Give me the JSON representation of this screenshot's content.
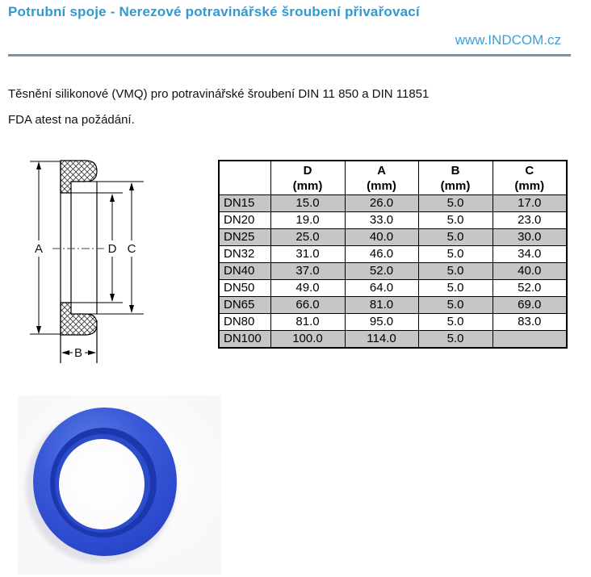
{
  "page": {
    "title": "Potrubní spoje - Nerezové potravinářské šroubení přivařovací",
    "website": "www.INDCOM.cz",
    "description_line1": "Těsnění silikonové (VMQ) pro potravinářské šroubení DIN 11 850 a DIN 11851",
    "description_line2": "FDA atest na požádání."
  },
  "diagram": {
    "labels": {
      "a": "A",
      "b": "B",
      "c": "C",
      "d": "D"
    }
  },
  "table": {
    "corner_header": "",
    "columns": [
      {
        "letter": "D",
        "unit": "(mm)"
      },
      {
        "letter": "A",
        "unit": "(mm)"
      },
      {
        "letter": "B",
        "unit": "(mm)"
      },
      {
        "letter": "C",
        "unit": "(mm)"
      }
    ],
    "rows": [
      {
        "dn": "DN15",
        "d": "15.0",
        "a": "26.0",
        "b": "5.0",
        "c": "17.0"
      },
      {
        "dn": "DN20",
        "d": "19.0",
        "a": "33.0",
        "b": "5.0",
        "c": "23.0"
      },
      {
        "dn": "DN25",
        "d": "25.0",
        "a": "40.0",
        "b": "5.0",
        "c": "30.0"
      },
      {
        "dn": "DN32",
        "d": "31.0",
        "a": "46.0",
        "b": "5.0",
        "c": "34.0"
      },
      {
        "dn": "DN40",
        "d": "37.0",
        "a": "52.0",
        "b": "5.0",
        "c": "40.0"
      },
      {
        "dn": "DN50",
        "d": "49.0",
        "a": "64.0",
        "b": "5.0",
        "c": "52.0"
      },
      {
        "dn": "DN65",
        "d": "66.0",
        "a": "81.0",
        "b": "5.0",
        "c": "69.0"
      },
      {
        "dn": "DN80",
        "d": "81.0",
        "a": "95.0",
        "b": "5.0",
        "c": "83.0"
      },
      {
        "dn": "DN100",
        "d": "100.0",
        "a": "114.0",
        "b": "5.0",
        "c": ""
      }
    ]
  },
  "colors": {
    "accent_blue": "#2f9ad2",
    "rule_blue_gray": "#7595a5",
    "table_row_gray": "#c6c6c6",
    "gasket_blue": "#3052ce"
  }
}
